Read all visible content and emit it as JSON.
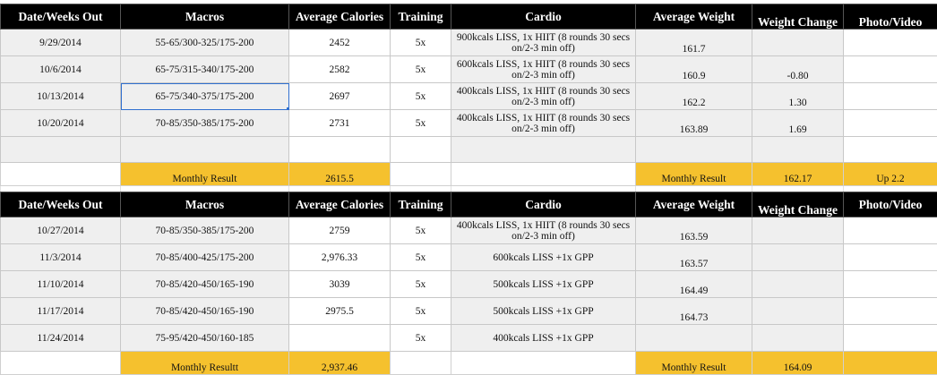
{
  "headers": [
    "Date/Weeks Out",
    "Macros",
    "Average Calories",
    "Training",
    "Cardio",
    "Average Weight",
    "Weight Change",
    "Photo/Video"
  ],
  "block1": {
    "rows": [
      {
        "date": "9/29/2014",
        "macros": "55-65/300-325/175-200",
        "calories": "2452",
        "training": "5x",
        "cardio": "900kcals LISS, 1x HIIT (8 rounds 30 secs on/2-3 min off)",
        "weight": "161.7",
        "change": "",
        "photo": ""
      },
      {
        "date": "10/6/2014",
        "macros": "65-75/315-340/175-200",
        "calories": "2582",
        "training": "5x",
        "cardio": "600kcals LISS, 1x HIIT (8 rounds 30 secs on/2-3 min off)",
        "weight": "160.9",
        "change": "-0.80",
        "photo": ""
      },
      {
        "date": "10/13/2014",
        "macros": "65-75/340-375/175-200",
        "calories": "2697",
        "training": "5x",
        "cardio": "400kcals LISS, 1x HIIT (8 rounds 30 secs on/2-3 min off)",
        "weight": "162.2",
        "change": "1.30",
        "photo": ""
      },
      {
        "date": "10/20/2014",
        "macros": "70-85/350-385/175-200",
        "calories": "2731",
        "training": "5x",
        "cardio": "400kcals LISS, 1x HIIT (8 rounds 30 secs on/2-3 min off)",
        "weight": "163.89",
        "change": "1.69",
        "photo": ""
      }
    ],
    "result": {
      "label": "Monthly Result",
      "calories": "2615.5",
      "weight_label": "Monthly Result",
      "weight": "162.17",
      "photo": "Up 2.2"
    }
  },
  "block2": {
    "rows": [
      {
        "date": "10/27/2014",
        "macros": "70-85/350-385/175-200",
        "calories": "2759",
        "training": "5x",
        "cardio": "400kcals LISS, 1x HIIT (8 rounds 30 secs on/2-3 min off)",
        "weight": "163.59",
        "change": "",
        "photo": ""
      },
      {
        "date": "11/3/2014",
        "macros": "70-85/400-425/175-200",
        "calories": "2,976.33",
        "training": "5x",
        "cardio": "600kcals LISS +1x GPP",
        "weight": "163.57",
        "change": "",
        "photo": ""
      },
      {
        "date": "11/10/2014",
        "macros": "70-85/420-450/165-190",
        "calories": "3039",
        "training": "5x",
        "cardio": "500kcals LISS +1x GPP",
        "weight": "164.49",
        "change": "",
        "photo": ""
      },
      {
        "date": "11/17/2014",
        "macros": "70-85/420-450/165-190",
        "calories": "2975.5",
        "training": "5x",
        "cardio": "500kcals LISS +1x GPP",
        "weight": "164.73",
        "change": "",
        "photo": ""
      },
      {
        "date": "11/24/2014",
        "macros": "75-95/420-450/160-185",
        "calories": "",
        "training": "5x",
        "cardio": "400kcals LISS +1x GPP",
        "weight": "",
        "change": "",
        "photo": ""
      }
    ],
    "result": {
      "label": "Monthly Resultt",
      "calories": "2,937.46",
      "weight_label": "Monthly Result",
      "weight": "164.09",
      "photo": ""
    }
  }
}
